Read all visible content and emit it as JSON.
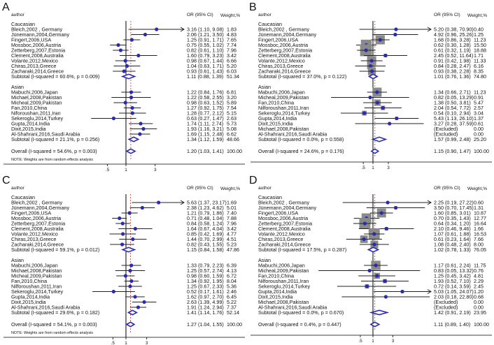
{
  "chart_data": [
    {
      "type": "forest",
      "letter": "A",
      "header": {
        "author": "author",
        "or": "OR (95% CI)",
        "weight": "Weight,%"
      },
      "groups": [
        {
          "name": "Caucasian",
          "studies": [
            {
              "label": "Bleich,2002 , Germany",
              "ci": "3.16 (1.10, 9.08)",
              "weight": "1.83"
            },
            {
              "label": "Jünemann,2004,Germany",
              "ci": "2.06 (1.21, 3.50)",
              "weight": "4.83"
            },
            {
              "label": "Fingert,2006,USA",
              "ci": "1.25 (0.91, 1.71)",
              "weight": "7.65"
            },
            {
              "label": "Mossboc,2006,Austria",
              "ci": "0.75 (0.55, 1.02)",
              "weight": "7.74"
            },
            {
              "label": "Zetterberg,2007,Estonia",
              "ci": "0.82 (0.61, 1.10)",
              "weight": "7.96"
            },
            {
              "label": "Clement,2008,Australia",
              "ci": "1.60 (0.79, 3.23)",
              "weight": "3.42"
            },
            {
              "label": "Volante,2012,Mexico",
              "ci": "0.98 (0.67, 1.44)",
              "weight": "6.66"
            },
            {
              "label": "Chiras,2013,Greece",
              "ci": "1.04 (0.63, 1.71)",
              "weight": "5.20"
            },
            {
              "label": "Zacharaki,2014,Greece",
              "ci": "0.93 (0.61, 1.43)",
              "weight": "6.03"
            }
          ],
          "subtotal": {
            "label": "Subtotal  (I-squared = 60.6%, p = 0.009)",
            "ci": "1.11 (0.88, 1.39)",
            "weight": "51.34"
          }
        },
        {
          "name": "Asian",
          "studies": [
            {
              "label": "Mabuchi,2006,Japan",
              "ci": "1.22 (0.84, 1.76)",
              "weight": "6.81"
            },
            {
              "label": "Michael,2008,Pakistan",
              "ci": "1.22 (0.58, 2.55)",
              "weight": "3.20"
            },
            {
              "label": "Micheal,2009,Pakistan",
              "ci": "0.98 (0.63, 1.52)",
              "weight": "5.89"
            },
            {
              "label": "Fan,2010,China",
              "ci": "1.27 (0.92, 1.75)",
              "weight": "7.54"
            },
            {
              "label": "Niforoushan,2011,Iran",
              "ci": "1.28 (0.77, 2.12)",
              "weight": "5.15"
            },
            {
              "label": "Sekeroglu,2014,Turkey",
              "ci": "0.63 (0.27, 1.47)",
              "weight": "2.63"
            },
            {
              "label": "Gupta,2014,India",
              "ci": "1.74 (1.11, 2.74)",
              "weight": "5.73"
            },
            {
              "label": "Dixit,2015,India",
              "ci": "1.93 (1.16, 3.21)",
              "weight": "5.08"
            },
            {
              "label": "Al-Shahrani,2016,Saudi Arabia",
              "ci": "1.69 (1.15, 2.48)",
              "weight": "6.62"
            }
          ],
          "subtotal": {
            "label": "Subtotal  (I-squared = 21.1%, p = 0.256)",
            "ci": "1.34 (1.12, 1.59)",
            "weight": "48.66"
          }
        }
      ],
      "overall": {
        "label": "Overall  (I-squared = 54.6%, p = 0.003)",
        "ci": "1.20 (1.03, 1.41)",
        "weight": "100.00"
      },
      "note": "NOTE: Weights are from random effects analysis",
      "ticks": [
        {
          "value": 0.5,
          "label": ".5"
        },
        {
          "value": 1,
          "label": "1"
        },
        {
          "value": 3,
          "label": "3"
        }
      ],
      "weighted_boxes": false
    },
    {
      "type": "forest",
      "letter": "B",
      "header": {
        "author": "author",
        "or": "OR (95% CI)",
        "weight": "Weight,%"
      },
      "groups": [
        {
          "name": "Caucasian",
          "studies": [
            {
              "label": "Bleich,2002 , Germany",
              "ci": "5.20 (0.38, 70.90)",
              "weight": "0.40"
            },
            {
              "label": "Jünemann,2004,Germany",
              "ci": "4.92 (0.96, 25.26)",
              "weight": "1.25"
            },
            {
              "label": "Fingert,2006,USA",
              "ci": "1.68 (0.86, 3.28)",
              "weight": "11.23"
            },
            {
              "label": "Mossboc,2006,Austria",
              "ci": "0.62 (0.30, 1.28)",
              "weight": "15.50"
            },
            {
              "label": "Zetterberg,2007,Estonia",
              "ci": "0.61 (0.32, 1.19)",
              "weight": "18.88"
            },
            {
              "label": "Clement,2008,Australia",
              "ci": "2.45 (0.52, 11.64)",
              "weight": "1.71"
            },
            {
              "label": "Volante,2012,Mexico",
              "ci": "0.91 (0.42, 1.98)",
              "weight": "11.33"
            },
            {
              "label": "Chiras,2013,Greece",
              "ci": "0.84 (0.28, 2.47)",
              "weight": "6.16"
            },
            {
              "label": "Zacharaki,2014,Greece",
              "ci": "0.93 (0.38, 2.28)",
              "weight": "8.35"
            }
          ],
          "subtotal": {
            "label": "Subtotal  (I-squared = 37.0%, p = 0.122)",
            "ci": "1.01 (0.76, 1.36)",
            "weight": "74.80"
          }
        },
        {
          "name": "Asian",
          "studies": [
            {
              "label": "Mabuchi,2006,Japan",
              "ci": "1.34 (0.66, 2.71)",
              "weight": "11.23"
            },
            {
              "label": "Micheal,2009,Pakistan",
              "ci": "0.82 (0.05, 13.29)",
              "weight": "0.91"
            },
            {
              "label": "Fan,2010,China",
              "ci": "1.38 (0.50, 3.81)",
              "weight": "5.47"
            },
            {
              "label": "Nilforoushan,2011,Iran",
              "ci": "2.04 (0.54, 7.72)",
              "weight": "2.57"
            },
            {
              "label": "Sekeroglu,2014,Turkey",
              "ci": "0.54 (0.10, 2.94)",
              "weight": "3.04"
            },
            {
              "label": "Gupta,2014,India",
              "ci": "5.43 (1.13, 26.10)",
              "weight": "1.37"
            },
            {
              "label": "Dixit,2015,India",
              "ci": "3.27 (0.28, 37.59)",
              "weight": "0.61"
            },
            {
              "label": "Michael,2008,Pakistan",
              "ci": "(Excluded)",
              "weight": "0.00"
            },
            {
              "label": "Al-Shahrani,2016,Saudi Arabia",
              "ci": "(Excluded)",
              "weight": "0.00"
            }
          ],
          "subtotal": {
            "label": "Subtotal  (I-squared = 0.0%, p = 0.558)",
            "ci": "1.57 (0.99, 2.48)",
            "weight": "25.20"
          }
        }
      ],
      "overall": {
        "label": "Overall  (I-squared = 24.6%, p = 0.176)",
        "ci": "1.15 (0.90, 1.47)",
        "weight": "100.00"
      },
      "note": "",
      "ticks": [
        {
          "value": 0.5,
          "label": ".5"
        },
        {
          "value": 1,
          "label": "1"
        },
        {
          "value": 3,
          "label": "3"
        }
      ],
      "weighted_boxes": true
    },
    {
      "type": "forest",
      "letter": "C",
      "header": {
        "author": "author",
        "or": "OR (95% CI)",
        "weight": "Weight,%"
      },
      "groups": [
        {
          "name": "Caucasian",
          "studies": [
            {
              "label": "Bleich,2002 , Germany",
              "ci": "5.63 (1.37, 23.17)",
              "weight": "1.69"
            },
            {
              "label": "Jünemann,2004,Germany",
              "ci": "2.38 (1.23, 4.62)",
              "weight": "5.01"
            },
            {
              "label": "Fingert,2006,USA",
              "ci": "1.21 (0.79, 1.86)",
              "weight": "7.40"
            },
            {
              "label": "Mossboc,2006,Austria",
              "ci": "0.71 (0.48, 1.04)",
              "weight": "7.88"
            },
            {
              "label": "Zetterberg,2007,Estonia",
              "ci": "0.84 (0.58, 1.24)",
              "weight": "7.96"
            },
            {
              "label": "Clement,2008,Australia",
              "ci": "1.64 (0.67, 4.04)",
              "weight": "3.42"
            },
            {
              "label": "Volante,2012,Mexico",
              "ci": "0.85 (0.42, 1.69)",
              "weight": "4.77"
            },
            {
              "label": "Chiras,2013,Greece",
              "ci": "1.44 (0.70, 2.99)",
              "weight": "4.51"
            },
            {
              "label": "Zacharaki,2014,Greece",
              "ci": "0.82 (0.43, 1.55)",
              "weight": "5.23"
            }
          ],
          "subtotal": {
            "label": "Subtotal  (I-squared = 59.1%, p = 0.012)",
            "ci": "1.15 (0.84, 1.58)",
            "weight": "47.86"
          }
        },
        {
          "name": "Asian",
          "studies": [
            {
              "label": "Mabuchi,2006,Japan",
              "ci": "1.33 (0.79, 2.23)",
              "weight": "6.39"
            },
            {
              "label": "Michael,2008,Pakistan",
              "ci": "1.25 (0.57, 2.74)",
              "weight": "4.13"
            },
            {
              "label": "Micheal,2009,Pakistan",
              "ci": "0.98 (0.60, 1.59)",
              "weight": "6.72"
            },
            {
              "label": "Fan,2010,China",
              "ci": "1.34 (0.92, 1.95)",
              "weight": "8.04"
            },
            {
              "label": "Nilforoushan,2011,Iran",
              "ci": "1.25 (0.67, 2.33)",
              "weight": "5.36"
            },
            {
              "label": "Sekeroglu,2014,Turkey",
              "ci": "0.52 (0.17, 1.61)",
              "weight": "2.46"
            },
            {
              "label": "Gupta,2014,India",
              "ci": "1.62 (0.97, 2.70)",
              "weight": "6.45"
            },
            {
              "label": "Dixit,2015,India",
              "ci": "2.63 (1.39, 4.99)",
              "weight": "5.22"
            },
            {
              "label": "Al-Shahrani,2016,Saudi Arabia",
              "ci": "1.91 (1.24, 2.94)",
              "weight": "7.37"
            }
          ],
          "subtotal": {
            "label": "Subtotal  (I-squared = 29.6%, p = 0.182)",
            "ci": "1.41 (1.14, 1.76)",
            "weight": "52.14"
          }
        }
      ],
      "overall": {
        "label": "Overall  (I-squared = 54.1%, p = 0.003)",
        "ci": "1.27 (1.04, 1.55)",
        "weight": "100.00"
      },
      "note": "NOTE: Weights are from random effects analysis",
      "ticks": [
        {
          "value": 0.5,
          "label": ".5"
        },
        {
          "value": 1,
          "label": "1"
        },
        {
          "value": 3,
          "label": "3"
        }
      ],
      "weighted_boxes": false
    },
    {
      "type": "forest",
      "letter": "D",
      "header": {
        "author": "author",
        "or": "OR (95% CI)",
        "weight": "Weight,%"
      },
      "groups": [
        {
          "name": "Caucasian",
          "studies": [
            {
              "label": "Bleich,2002 , Germany",
              "ci": "2.25 (0.19, 27.22)",
              "weight": "0.60"
            },
            {
              "label": "Jünemann,2004,Germany",
              "ci": "3.50 (0.70, 17.45)",
              "weight": "1.31"
            },
            {
              "label": "Fingert,2006,USA",
              "ci": "1.60 (0.85, 3.01)",
              "weight": "10.87"
            },
            {
              "label": "Mossboc,2006,Austria",
              "ci": "0.70 (0.35, 1.43)",
              "weight": "12.77"
            },
            {
              "label": "Zetterberg,2007,Estonia",
              "ci": "0.64 (0.34, 1.20)",
              "weight": "16.64"
            },
            {
              "label": "Clement,2008,Australia",
              "ci": "2.10 (0.46, 9.46)",
              "weight": "1.66"
            },
            {
              "label": "Volante,2012,Mexico",
              "ci": "1.07 (0.61, 1.88)",
              "weight": "16.53"
            },
            {
              "label": "Chiras,2013,Greece",
              "ci": "0.61 (0.23, 1.64)",
              "weight": "7.66"
            },
            {
              "label": "Zacharaki,2014,Greece",
              "ci": "1.08 (0.48, 2.40)",
              "weight": "8.00"
            }
          ],
          "subtotal": {
            "label": "Subtotal  (I-squared = 17.5%, p = 0.287)",
            "ci": "1.02 (0.78, 1.33)",
            "weight": "76.05"
          }
        },
        {
          "name": "Asian",
          "studies": [
            {
              "label": "Mabuchi,2006,Japan",
              "ci": "1.17 (0.61, 2.24)",
              "weight": "11.75"
            },
            {
              "label": "Micheal,2009,Pakistan",
              "ci": "0.83 (0.05, 13.32)",
              "weight": "0.76"
            },
            {
              "label": "Fan,2010,China",
              "ci": "1.25 (0.45, 3.42)",
              "weight": "4.81"
            },
            {
              "label": "Nilforoushan,2011,Iran",
              "ci": "1.93 (0.52, 7.10)",
              "weight": "2.29"
            },
            {
              "label": "Sekeroglu,2014,Turkey",
              "ci": "0.72 (0.14, 3.59)",
              "weight": "2.45"
            },
            {
              "label": "Gupta,2014,India",
              "ci": "5.03 (1.05, 24.07)",
              "weight": "1.20"
            },
            {
              "label": "Dixit,2015,India",
              "ci": "2.03 (0.18, 22.80)",
              "weight": "0.68"
            },
            {
              "label": "Michael,2008,Pakistan",
              "ci": "(Excluded)",
              "weight": "0.00"
            },
            {
              "label": "Al-Shahrani,2016,Saudi Arabia",
              "ci": "(Excluded)",
              "weight": "0.00"
            }
          ],
          "subtotal": {
            "label": "Subtotal  (I-squared = 0.0%, p = 0.670)",
            "ci": "1.42 (0.91, 2.19)",
            "weight": "23.95"
          }
        }
      ],
      "overall": {
        "label": "Overall  (I-squared = 0.4%, p = 0.447)",
        "ci": "1.11 (0.89, 1.40)",
        "weight": "100.00"
      },
      "note": "",
      "ticks": [
        {
          "value": 0.5,
          "label": ".5"
        },
        {
          "value": 1,
          "label": "1"
        },
        {
          "value": 3,
          "label": "3"
        }
      ],
      "weighted_boxes": true
    }
  ],
  "colors": {
    "marker": "#2b2bb0",
    "box": "#8a8a8a",
    "ref_line": "#c0392b",
    "line": "#222222"
  }
}
